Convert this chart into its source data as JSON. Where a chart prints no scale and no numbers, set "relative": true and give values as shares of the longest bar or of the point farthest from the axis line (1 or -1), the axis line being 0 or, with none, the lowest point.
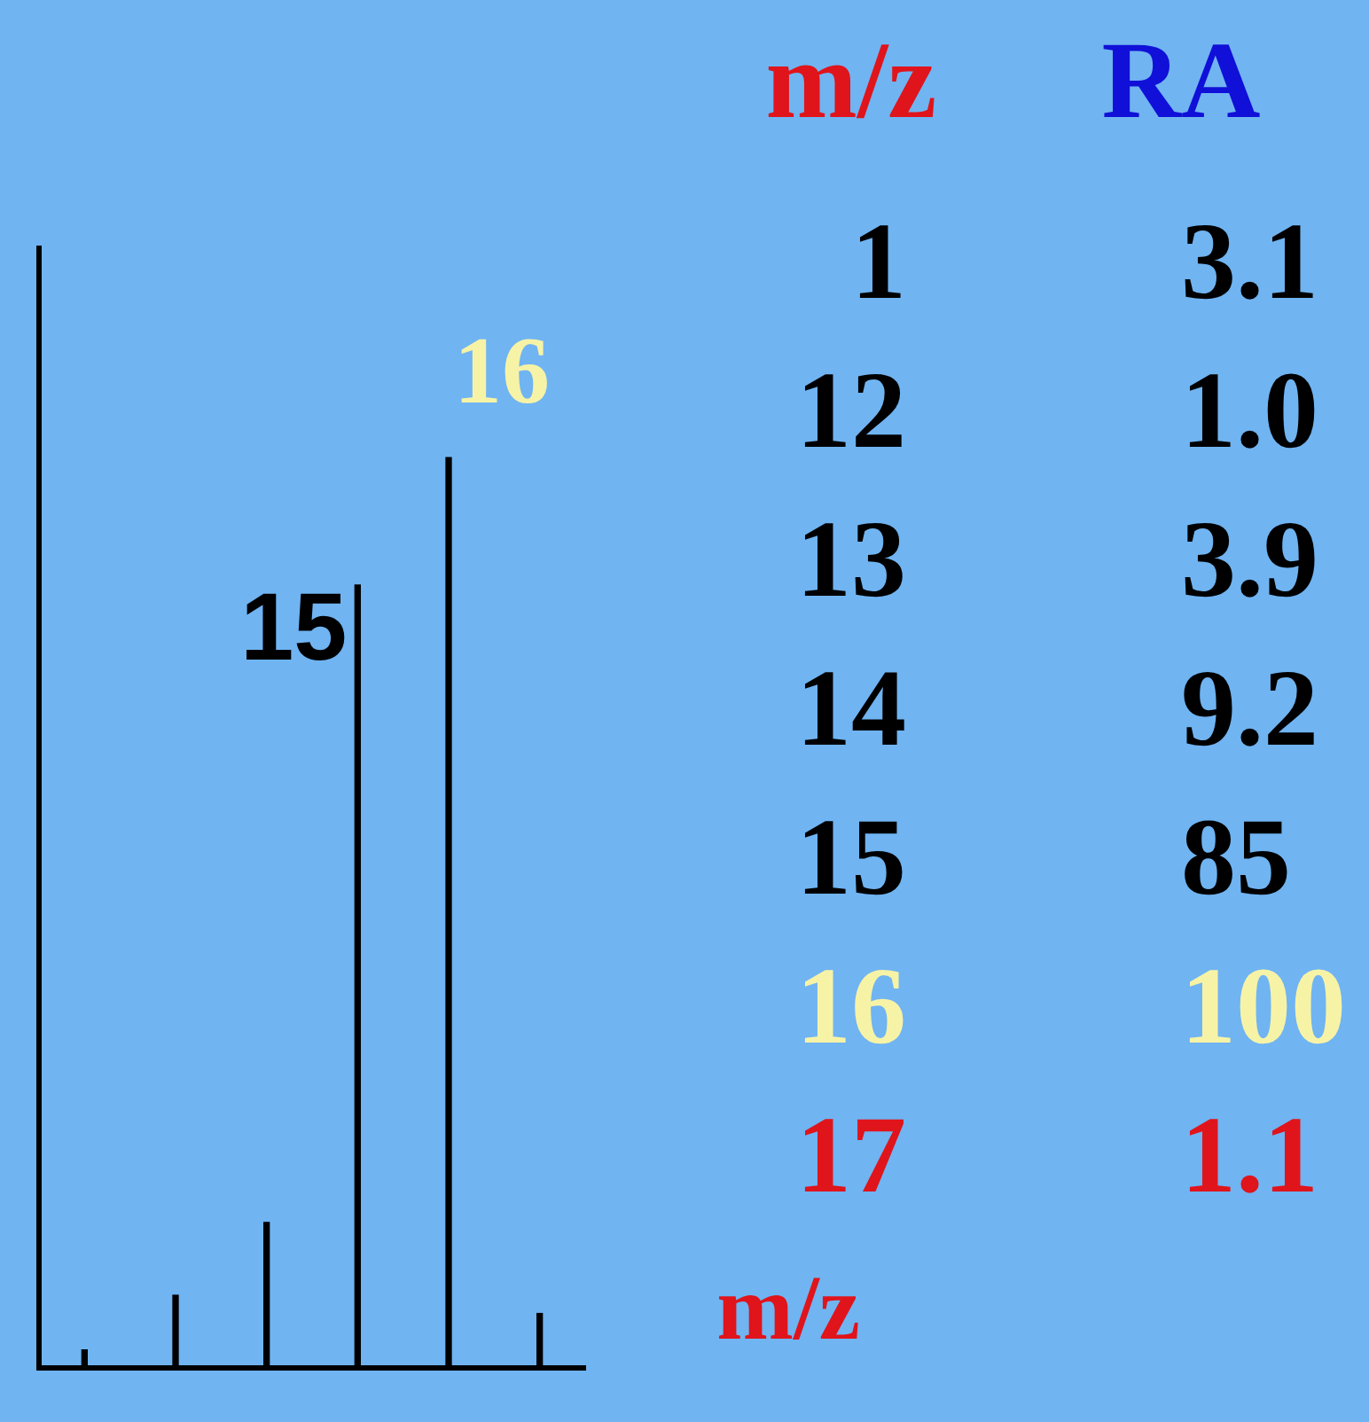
{
  "chart_data": [
    {
      "type": "bar",
      "relative": true,
      "categories": [
        null,
        null,
        null,
        null,
        null,
        null
      ],
      "values": [
        0.02,
        0.08,
        0.16,
        0.86,
        1,
        0.06
      ],
      "color": "#000000",
      "xlabel": "m/z",
      "grid": false,
      "legend": false,
      "annotations": [
        "15",
        "16"
      ]
    },
    {
      "type": "other",
      "annotations": [
        "m/z",
        "RA",
        "1",
        "3.1",
        "12",
        "1.0",
        "13",
        "3.9",
        "14",
        "9.2",
        "15",
        "85",
        "16",
        "100",
        "17",
        "1.1"
      ]
    }
  ]
}
